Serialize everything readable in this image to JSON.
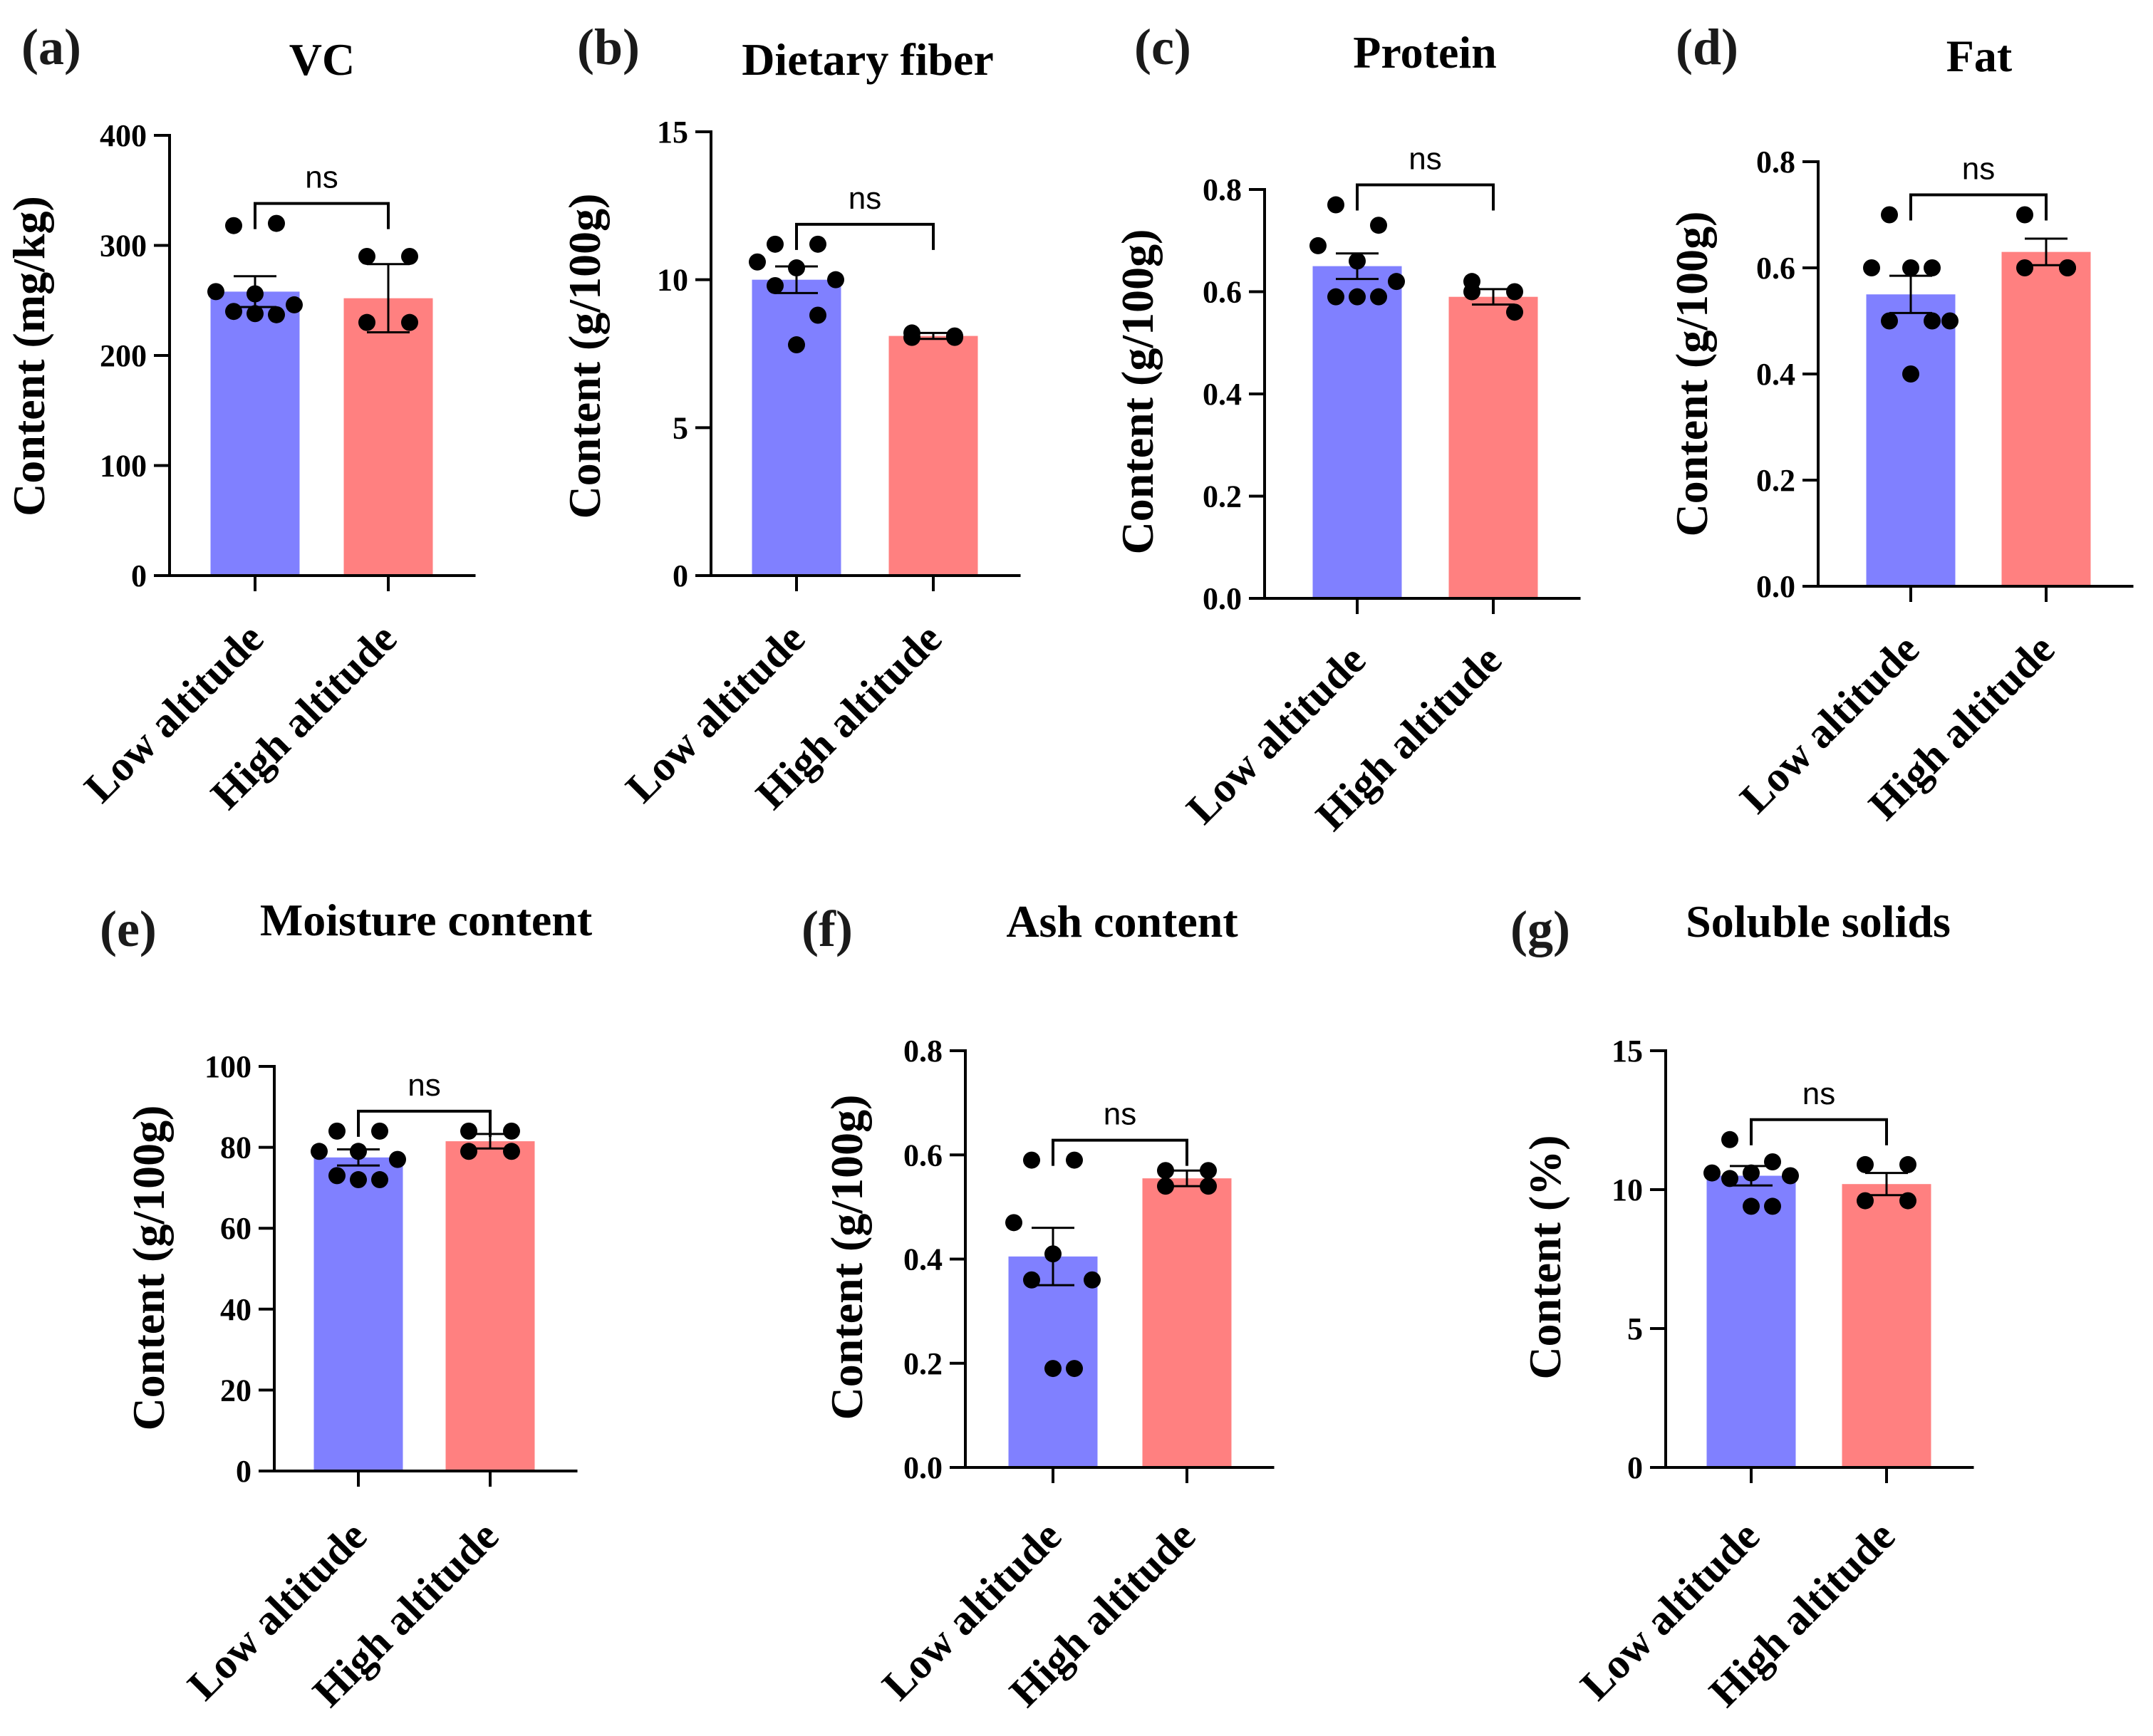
{
  "colors": {
    "low": "#8080ff",
    "high": "#ff8080",
    "axis": "#000000",
    "dot": "#000000"
  },
  "chart_data": [
    {
      "type": "bar",
      "panel": "(a)",
      "title": "VC",
      "ylabel": "Content (mg/kg)",
      "ylim": [
        0,
        400
      ],
      "yticks": [
        0,
        100,
        200,
        300,
        400
      ],
      "yticklabels": [
        "0",
        "100",
        "200",
        "300",
        "400"
      ],
      "categories": [
        "Low altitude",
        "High altitude"
      ],
      "values": [
        258,
        252
      ],
      "errors": [
        14,
        31
      ],
      "points": [
        [
          318,
          320,
          258,
          256,
          246,
          240,
          237,
          238
        ],
        [
          290,
          290,
          230,
          230
        ]
      ],
      "significance": "ns"
    },
    {
      "type": "bar",
      "panel": "(b)",
      "title": "Dietary fiber",
      "ylabel": "Content (g/100g)",
      "ylim": [
        0,
        15
      ],
      "yticks": [
        0,
        5,
        10,
        15
      ],
      "yticklabels": [
        "0",
        "5",
        "10",
        "15"
      ],
      "categories": [
        "Low altitude",
        "High altitude"
      ],
      "values": [
        10.0,
        8.1
      ],
      "errors": [
        0.45,
        0.1
      ],
      "points": [
        [
          11.2,
          11.2,
          10.6,
          10.4,
          10.0,
          9.8,
          8.8,
          7.8
        ],
        [
          8.2,
          8.1,
          8.05,
          8.05
        ]
      ],
      "significance": "ns"
    },
    {
      "type": "bar",
      "panel": "(c)",
      "title": "Protein",
      "ylabel": "Content (g/100g)",
      "ylim": [
        0,
        0.8
      ],
      "yticks": [
        0,
        0.2,
        0.4,
        0.6,
        0.8
      ],
      "yticklabels": [
        "0.0",
        "0.2",
        "0.4",
        "0.6",
        "0.8"
      ],
      "categories": [
        "Low altitude",
        "High altitude"
      ],
      "values": [
        0.65,
        0.59
      ],
      "errors": [
        0.025,
        0.015
      ],
      "points": [
        [
          0.77,
          0.73,
          0.69,
          0.66,
          0.62,
          0.59,
          0.59,
          0.59
        ],
        [
          0.62,
          0.6,
          0.6,
          0.56
        ]
      ],
      "significance": "ns"
    },
    {
      "type": "bar",
      "panel": "(d)",
      "title": "Fat",
      "ylabel": "Content (g/100g)",
      "ylim": [
        0,
        0.8
      ],
      "yticks": [
        0,
        0.2,
        0.4,
        0.6,
        0.8
      ],
      "yticklabels": [
        "0.0",
        "0.2",
        "0.4",
        "0.6",
        "0.8"
      ],
      "categories": [
        "Low altitude",
        "High altitude"
      ],
      "values": [
        0.55,
        0.63
      ],
      "errors": [
        0.035,
        0.025
      ],
      "points": [
        [
          0.7,
          0.6,
          0.6,
          0.6,
          0.5,
          0.5,
          0.5,
          0.4
        ],
        [
          0.7,
          0.6,
          0.6,
          0.6
        ]
      ],
      "significance": "ns"
    },
    {
      "type": "bar",
      "panel": "(e)",
      "title": "Moisture content",
      "ylabel": "Content (g/100g)",
      "ylim": [
        0,
        100
      ],
      "yticks": [
        0,
        20,
        40,
        60,
        80,
        100
      ],
      "yticklabels": [
        "0",
        "20",
        "40",
        "60",
        "80",
        "100"
      ],
      "categories": [
        "Low altitude",
        "High altitude"
      ],
      "values": [
        77.5,
        81.5
      ],
      "errors": [
        2.0,
        1.8
      ],
      "points": [
        [
          84,
          84,
          79,
          79,
          77,
          73,
          72,
          72
        ],
        [
          84,
          84,
          79,
          79
        ]
      ],
      "significance": "ns"
    },
    {
      "type": "bar",
      "panel": "(f)",
      "title": "Ash content",
      "ylabel": "Content (g/100g)",
      "ylim": [
        0,
        0.8
      ],
      "yticks": [
        0,
        0.2,
        0.4,
        0.6,
        0.8
      ],
      "yticklabels": [
        "0.0",
        "0.2",
        "0.4",
        "0.6",
        "0.8"
      ],
      "categories": [
        "Low altitude",
        "High altitude"
      ],
      "values": [
        0.405,
        0.555
      ],
      "errors": [
        0.055,
        0.015
      ],
      "points": [
        [
          0.59,
          0.59,
          0.47,
          0.41,
          0.36,
          0.36,
          0.19,
          0.19
        ],
        [
          0.57,
          0.57,
          0.54,
          0.54
        ]
      ],
      "significance": "ns"
    },
    {
      "type": "bar",
      "panel": "(g)",
      "title": "Soluble solids",
      "ylabel": "Content (%)",
      "ylim": [
        0,
        15
      ],
      "yticks": [
        0,
        5,
        10,
        15
      ],
      "yticklabels": [
        "0",
        "5",
        "10",
        "15"
      ],
      "categories": [
        "Low altitude",
        "High altitude"
      ],
      "values": [
        10.5,
        10.2
      ],
      "errors": [
        0.35,
        0.4
      ],
      "points": [
        [
          11.8,
          11.0,
          10.6,
          10.6,
          10.5,
          10.4,
          9.4,
          9.4
        ],
        [
          10.9,
          10.9,
          9.6,
          9.6
        ]
      ],
      "significance": "ns"
    }
  ]
}
